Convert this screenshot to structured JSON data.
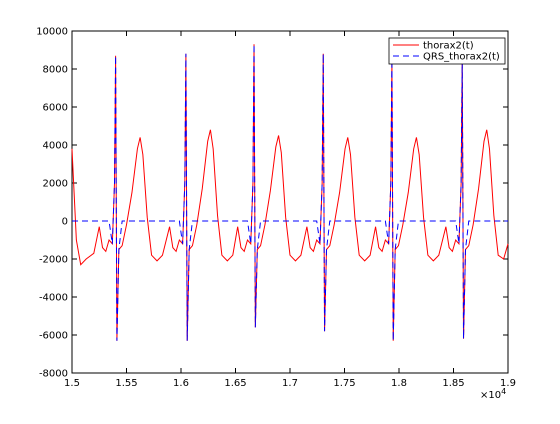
{
  "chart_data": {
    "type": "line",
    "x": [
      15000,
      15040,
      15080,
      15130,
      15200,
      15250,
      15280,
      15310,
      15340,
      15370,
      15390,
      15400,
      15412,
      15430,
      15460,
      15500,
      15550,
      15600,
      15625,
      15650,
      15690,
      15730,
      15780,
      15830,
      15895,
      15925,
      15955,
      15985,
      16015,
      16035,
      16045,
      16057,
      16075,
      16105,
      16145,
      16195,
      16245,
      16270,
      16295,
      16335,
      16375,
      16425,
      16475,
      16520,
      16550,
      16580,
      16610,
      16640,
      16660,
      16670,
      16682,
      16700,
      16730,
      16770,
      16820,
      16870,
      16895,
      16920,
      16960,
      17000,
      17050,
      17100,
      17155,
      17185,
      17215,
      17245,
      17275,
      17295,
      17305,
      17317,
      17335,
      17365,
      17405,
      17455,
      17505,
      17530,
      17555,
      17595,
      17635,
      17685,
      17735,
      17785,
      17815,
      17845,
      17875,
      17905,
      17925,
      17935,
      17947,
      17965,
      17995,
      18035,
      18085,
      18135,
      18160,
      18185,
      18225,
      18265,
      18315,
      18365,
      18430,
      18460,
      18490,
      18520,
      18550,
      18570,
      18580,
      18592,
      18610,
      18640,
      18680,
      18730,
      18780,
      18805,
      18830,
      18870,
      18910,
      18960,
      19000
    ],
    "series": [
      {
        "name": "thorax2(t)",
        "color": "#ff0000",
        "dash": false,
        "values": [
          3800,
          -1000,
          -2300,
          -2000,
          -1700,
          -300,
          -1400,
          -1600,
          -1000,
          -1200,
          2000,
          8700,
          -6300,
          -1500,
          -1300,
          -200,
          1500,
          3800,
          4400,
          3500,
          200,
          -1800,
          -2100,
          -1800,
          -300,
          -1400,
          -1600,
          -1000,
          -1200,
          2000,
          8800,
          -6300,
          -1500,
          -1300,
          -200,
          1700,
          4200,
          4800,
          3800,
          300,
          -1800,
          -2100,
          -1800,
          -300,
          -1400,
          -1600,
          -1000,
          -1200,
          2000,
          9300,
          -5600,
          -1500,
          -1300,
          -200,
          1600,
          3900,
          4500,
          3600,
          200,
          -1800,
          -2100,
          -1800,
          -300,
          -1400,
          -1600,
          -1000,
          -1200,
          2000,
          8800,
          -5800,
          -1500,
          -1300,
          -200,
          1500,
          3800,
          4400,
          3500,
          200,
          -1800,
          -2100,
          -1800,
          -300,
          -1400,
          -1600,
          -1000,
          -1200,
          2000,
          8500,
          -6300,
          -1500,
          -1300,
          -200,
          1500,
          3800,
          4400,
          3500,
          200,
          -1800,
          -2100,
          -1800,
          -300,
          -1400,
          -1600,
          -1000,
          -1200,
          2000,
          8600,
          -6200,
          -1500,
          -1300,
          -200,
          1700,
          4200,
          4800,
          3800,
          300,
          -1800,
          -2000,
          -1200
        ]
      },
      {
        "name": "QRS_thorax2(t)",
        "color": "#0000ff",
        "dash": true,
        "values": [
          0,
          0,
          0,
          0,
          0,
          0,
          0,
          0,
          0,
          -1200,
          2000,
          8700,
          -6300,
          -1500,
          0,
          0,
          0,
          0,
          0,
          0,
          0,
          0,
          0,
          0,
          0,
          0,
          0,
          0,
          -1200,
          2000,
          8800,
          -6300,
          -1500,
          0,
          0,
          0,
          0,
          0,
          0,
          0,
          0,
          0,
          0,
          0,
          0,
          0,
          0,
          -1200,
          2000,
          9300,
          -5600,
          -1500,
          0,
          0,
          0,
          0,
          0,
          0,
          0,
          0,
          0,
          0,
          0,
          0,
          0,
          0,
          -1200,
          2000,
          8800,
          -5800,
          -1500,
          0,
          0,
          0,
          0,
          0,
          0,
          0,
          0,
          0,
          0,
          0,
          0,
          0,
          0,
          -1200,
          2000,
          8500,
          -6300,
          -1500,
          0,
          0,
          0,
          0,
          0,
          0,
          0,
          0,
          0,
          0,
          0,
          0,
          0,
          0,
          -1200,
          2000,
          8600,
          -6200,
          -1500,
          0,
          0,
          0,
          0,
          0,
          0,
          0,
          0,
          0,
          0
        ]
      }
    ],
    "xlim": [
      15000,
      19000
    ],
    "xticks": [
      {
        "value": 15000,
        "label": "1.5"
      },
      {
        "value": 15500,
        "label": "1.55"
      },
      {
        "value": 16000,
        "label": "1.6"
      },
      {
        "value": 16500,
        "label": "1.65"
      },
      {
        "value": 17000,
        "label": "1.7"
      },
      {
        "value": 17500,
        "label": "1.75"
      },
      {
        "value": 18000,
        "label": "1.8"
      },
      {
        "value": 18500,
        "label": "1.85"
      },
      {
        "value": 19000,
        "label": "1.9"
      }
    ],
    "x_multiplier": "×10",
    "x_exponent": "4",
    "ylim": [
      -8000,
      10000
    ],
    "yticks": [
      -8000,
      -6000,
      -4000,
      -2000,
      0,
      2000,
      4000,
      6000,
      8000,
      10000
    ],
    "legend": "upper right"
  }
}
